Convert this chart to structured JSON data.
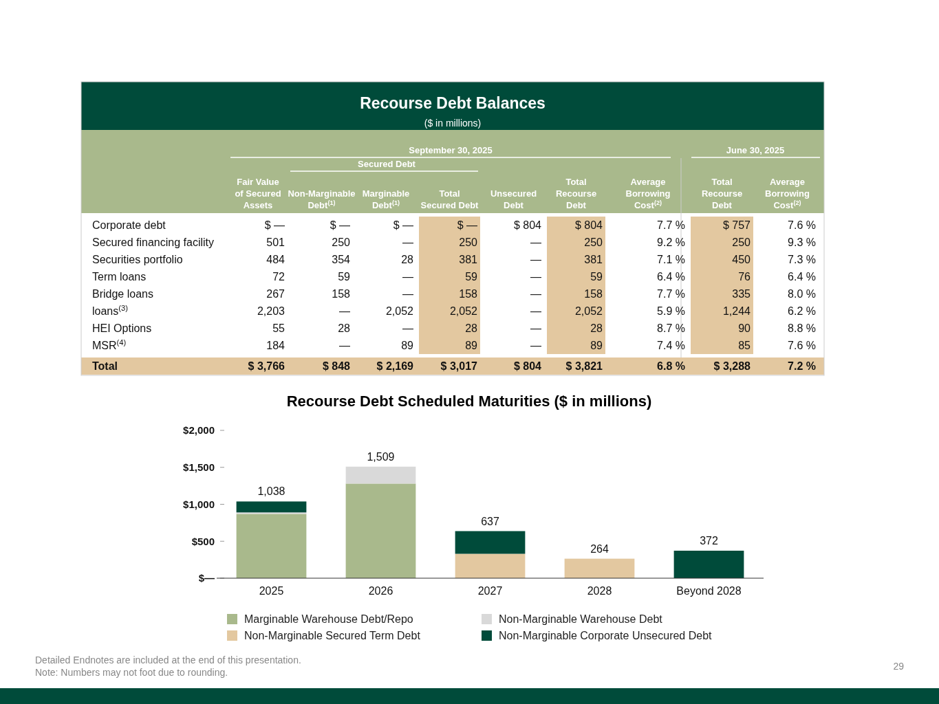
{
  "chart_data": [
    {
      "type": "heatmap",
      "title": "Recourse Debt Balances",
      "subtitle": "($ in millions)",
      "annotations": [
        "September 30, 2025",
        "Secured Debt",
        "June 30, 2025"
      ],
      "categories": [
        "Fair Value of Secured Assets",
        "Non-Marginable Debt$^{(1)}$",
        "Marginable Debt$^{(1)}$",
        "Total Secured Debt",
        "Unsecured Debt",
        "Total Recourse Debt",
        "Average Borrowing Cost$^{(2)}$",
        "Total Recourse Debt",
        "Average Borrowing Cost$^{(2)}$"
      ],
      "y_categories": [
        "Corporate debt",
        "Secured financing facility",
        "Securities portfolio",
        "Term loans",
        "Bridge loans",
        "loans$^{(3)}$",
        "HEI Options",
        "MSR$^{(4)}$",
        "Total"
      ],
      "cells": [
        [
          null,
          null,
          null,
          null,
          804,
          804,
          7.7,
          757,
          7.6
        ],
        [
          501,
          250,
          null,
          250,
          null,
          250,
          9.2,
          250,
          9.3
        ],
        [
          484,
          354,
          28,
          381,
          null,
          381,
          7.1,
          450,
          7.3
        ],
        [
          72,
          59,
          null,
          59,
          null,
          59,
          6.4,
          76,
          6.4
        ],
        [
          267,
          158,
          null,
          158,
          null,
          158,
          7.7,
          335,
          8.0
        ],
        [
          2203,
          null,
          2052,
          2052,
          null,
          2052,
          5.9,
          1244,
          6.2
        ],
        [
          55,
          28,
          null,
          28,
          null,
          28,
          8.7,
          90,
          8.8
        ],
        [
          184,
          null,
          89,
          89,
          null,
          89,
          7.4,
          85,
          7.6
        ],
        [
          3766,
          848,
          2169,
          3017,
          804,
          3821,
          6.8,
          3288,
          7.2
        ]
      ],
      "cell_labels": [
        [
          "$ —",
          "$ —",
          "$ —",
          "$ —",
          "$ 804",
          "$ 804",
          "7.7 %",
          "$ 757",
          "7.6 %"
        ],
        [
          "501",
          "250",
          "—",
          "250",
          "—",
          "250",
          "9.2 %",
          "250",
          "9.3 %"
        ],
        [
          "484",
          "354",
          "28",
          "381",
          "—",
          "381",
          "7.1 %",
          "450",
          "7.3 %"
        ],
        [
          "72",
          "59",
          "—",
          "59",
          "—",
          "59",
          "6.4 %",
          "76",
          "6.4 %"
        ],
        [
          "267",
          "158",
          "—",
          "158",
          "—",
          "158",
          "7.7 %",
          "335",
          "8.0 %"
        ],
        [
          "2,203",
          "—",
          "2,052",
          "2,052",
          "—",
          "2,052",
          "5.9 %",
          "1,244",
          "6.2 %"
        ],
        [
          "55",
          "28",
          "—",
          "28",
          "—",
          "28",
          "8.7 %",
          "90",
          "8.8 %"
        ],
        [
          "184",
          "—",
          "89",
          "89",
          "—",
          "89",
          "7.4 %",
          "85",
          "7.6 %"
        ],
        [
          "$ 3,766",
          "$ 848",
          "$ 2,169",
          "$ 3,017",
          "$ 804",
          "$ 3,821",
          "6.8 %",
          "$ 3,288",
          "7.2 %"
        ]
      ]
    },
    {
      "type": "bar",
      "stacked": true,
      "title": "Recourse Debt Scheduled Maturities ($ in millions)",
      "categories": [
        "2025",
        "2026",
        "2027",
        "2028",
        "Beyond 2028"
      ],
      "series": [
        {
          "name": "Marginable Warehouse Debt/Repo",
          "color": "#a9b98c",
          "values": [
            870,
            1280,
            null,
            null,
            null
          ]
        },
        {
          "name": "Non-Marginable Warehouse Debt",
          "color": "#d9d9d9",
          "values": [
            20,
            229,
            null,
            null,
            null
          ]
        },
        {
          "name": "Non-Marginable Secured Term Debt",
          "color": "#e3c8a0",
          "values": [
            null,
            null,
            330,
            264,
            null
          ]
        },
        {
          "name": "Non-Marginable Corporate Unsecured Debt",
          "color": "#004b3a",
          "values": [
            148,
            null,
            307,
            null,
            372
          ]
        }
      ],
      "totals": [
        "1,038",
        "1,509",
        "637",
        "264",
        "372"
      ],
      "ylim": [
        0,
        2000
      ],
      "yticks": [
        {
          "value": 0,
          "label": "$—"
        },
        {
          "value": 500,
          "label": "$500"
        },
        {
          "value": 1000,
          "label": "$1,000"
        },
        {
          "value": 1500,
          "label": "$1,500"
        },
        {
          "value": 2000,
          "label": "$2,000"
        }
      ],
      "grid": false,
      "legend": "bottom",
      "annotations": [
        "Detailed Endnotes are included at the end of this presentation.",
        "Note: Numbers may not foot due to rounding.",
        "29"
      ]
    }
  ]
}
